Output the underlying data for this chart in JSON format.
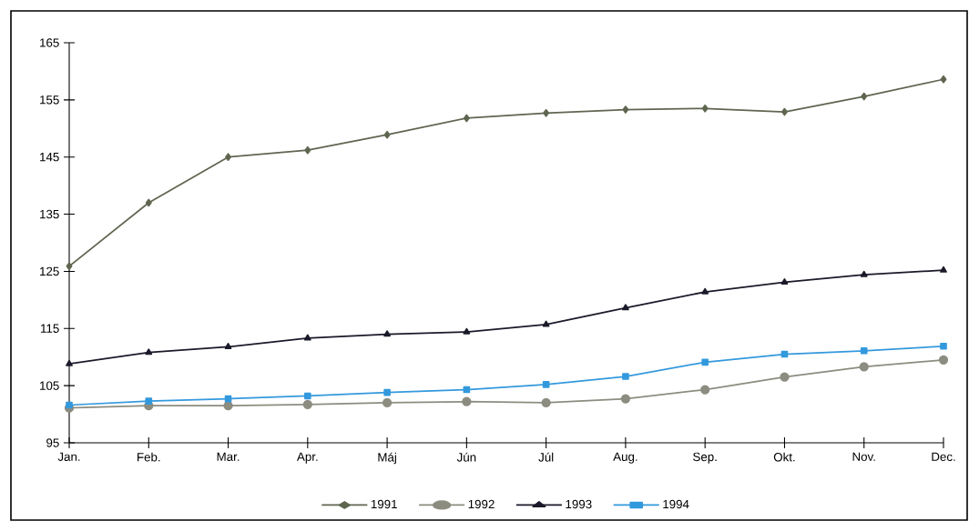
{
  "chart_data": {
    "type": "line",
    "categories": [
      "Jan.",
      "Feb.",
      "Mar.",
      "Apr.",
      "Máj",
      "Jún",
      "Júl",
      "Aug.",
      "Sep.",
      "Okt.",
      "Nov.",
      "Dec."
    ],
    "series": [
      {
        "name": "1991",
        "color": "#5f6650",
        "marker": "diamond",
        "values": [
          125.9,
          137.0,
          145.0,
          146.2,
          148.9,
          151.8,
          152.7,
          153.3,
          153.5,
          152.9,
          155.6,
          158.6
        ]
      },
      {
        "name": "1992",
        "color": "#8c8c80",
        "marker": "circle",
        "values": [
          101.1,
          101.5,
          101.5,
          101.7,
          102.0,
          102.2,
          102.0,
          102.7,
          104.3,
          106.5,
          108.3,
          109.5
        ]
      },
      {
        "name": "1993",
        "color": "#1a1a2a",
        "marker": "triangle",
        "values": [
          108.8,
          110.8,
          111.8,
          113.3,
          114.0,
          114.4,
          115.7,
          118.6,
          121.4,
          123.1,
          124.4,
          125.2
        ]
      },
      {
        "name": "1994",
        "color": "#3399dd",
        "marker": "square",
        "values": [
          101.6,
          102.3,
          102.7,
          103.2,
          103.8,
          104.3,
          105.2,
          106.6,
          109.1,
          110.5,
          111.1,
          111.9
        ]
      }
    ],
    "ylim": [
      95,
      165
    ],
    "yticks": [
      95,
      105,
      115,
      125,
      135,
      145,
      155,
      165
    ],
    "grid": false,
    "legend": "bottom",
    "line_style": "solid"
  }
}
